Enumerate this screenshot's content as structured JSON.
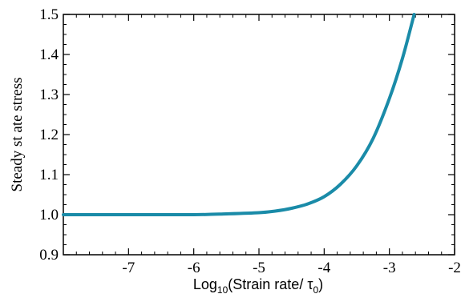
{
  "chart_data": {
    "type": "line",
    "xlabel_parts": [
      "Log",
      "10",
      "(Strain rate/ τ",
      "0",
      ")"
    ],
    "ylabel": "Steady st ate stress",
    "xlim": [
      -8,
      -2
    ],
    "ylim": [
      0.9,
      1.5
    ],
    "x_ticks": [
      -7,
      -6,
      -5,
      -4,
      -3,
      -2
    ],
    "y_ticks": [
      0.9,
      1.0,
      1.1,
      1.2,
      1.3,
      1.4,
      1.5
    ],
    "x_tick_labels": [
      "-7",
      "-6",
      "-5",
      "-4",
      "-3",
      "-2"
    ],
    "y_tick_labels": [
      "0.9",
      "1.0",
      "1.1",
      "1.2",
      "1.3",
      "1.4",
      "1.5"
    ],
    "grid": false,
    "series": [
      {
        "color": "#1a8ba8",
        "x": [
          -8.0,
          -7.0,
          -6.0,
          -5.5,
          -5.0,
          -4.75,
          -4.5,
          -4.25,
          -4.0,
          -3.75,
          -3.5,
          -3.25,
          -3.0,
          -2.8,
          -2.62
        ],
        "y": [
          1.0,
          1.0,
          1.0,
          1.002,
          1.005,
          1.009,
          1.016,
          1.027,
          1.045,
          1.076,
          1.122,
          1.19,
          1.29,
          1.39,
          1.5
        ]
      }
    ]
  }
}
